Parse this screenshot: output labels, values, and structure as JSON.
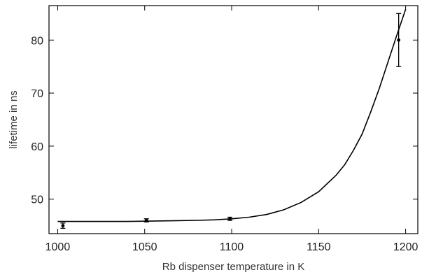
{
  "chart_data": {
    "type": "scatter",
    "title": "",
    "xlabel": "Rb dispenser temperature in K",
    "ylabel": "lifetime in ns",
    "xlim": [
      995,
      1207
    ],
    "ylim": [
      43.5,
      86.5
    ],
    "grid": false,
    "xticks": [
      1000,
      1050,
      1100,
      1150,
      1200
    ],
    "yticks": [
      50,
      60,
      70,
      80
    ],
    "xtick_labels": [
      "1000",
      "1050",
      "1100",
      "1150",
      "1200"
    ],
    "ytick_labels": [
      "50",
      "60",
      "70",
      "80"
    ],
    "series": [
      {
        "kind": "points_with_error_bars",
        "x": [
          1003,
          1051,
          1099,
          1196
        ],
        "y": [
          45.0,
          46.0,
          46.3,
          80.0
        ],
        "yerr": [
          0.5,
          0.3,
          0.3,
          5.0
        ]
      },
      {
        "kind": "fit_curve",
        "x": [
          1000,
          1020,
          1040,
          1060,
          1080,
          1090,
          1100,
          1110,
          1120,
          1130,
          1140,
          1150,
          1160,
          1165,
          1170,
          1175,
          1180,
          1185,
          1190,
          1195,
          1200
        ],
        "y": [
          45.8,
          45.8,
          45.8,
          45.9,
          46.0,
          46.1,
          46.3,
          46.6,
          47.1,
          48.0,
          49.4,
          51.4,
          54.5,
          56.5,
          59.2,
          62.3,
          66.5,
          71.0,
          76.0,
          81.0,
          85.8
        ]
      }
    ]
  }
}
